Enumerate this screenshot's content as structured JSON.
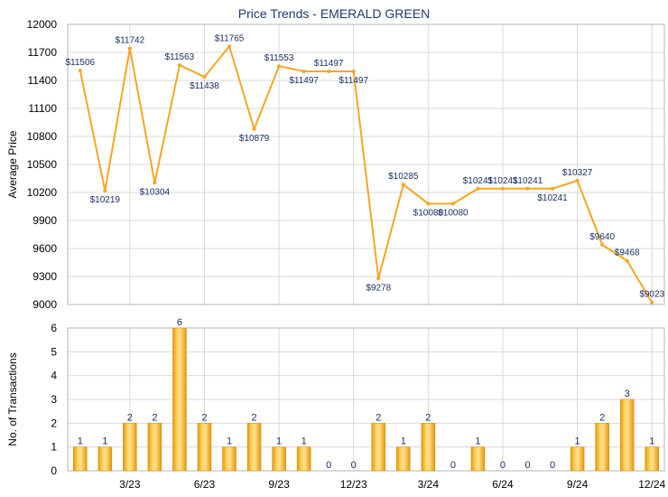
{
  "chart_data": [
    {
      "type": "line",
      "title": "Price Trends - EMERALD GREEN",
      "ylabel": "Average Price",
      "ylim": [
        9000,
        12000
      ],
      "yticks": [
        9000,
        9300,
        9600,
        9900,
        10200,
        10500,
        10800,
        11100,
        11400,
        11700,
        12000
      ],
      "grid": true,
      "color": "#f5a623",
      "points": [
        {
          "i": 0,
          "value": 11506,
          "label": "$11506"
        },
        {
          "i": 1,
          "value": 10219,
          "label": "$10219"
        },
        {
          "i": 2,
          "value": 11742,
          "label": "$11742"
        },
        {
          "i": 3,
          "value": 10304,
          "label": "$10304"
        },
        {
          "i": 4,
          "value": 11563,
          "label": "$11563"
        },
        {
          "i": 5,
          "value": 11438,
          "label": "$11438"
        },
        {
          "i": 6,
          "value": 11765,
          "label": "$11765"
        },
        {
          "i": 7,
          "value": 10879,
          "label": "$10879"
        },
        {
          "i": 8,
          "value": 11553,
          "label": "$11553"
        },
        {
          "i": 9,
          "value": 11497,
          "label": "$11497"
        },
        {
          "i": 10,
          "value": 11497,
          "label": "$11497"
        },
        {
          "i": 11,
          "value": 11497,
          "label": "$11497"
        },
        {
          "i": 12,
          "value": 9278,
          "label": "$9278"
        },
        {
          "i": 13,
          "value": 10285,
          "label": "$10285"
        },
        {
          "i": 14,
          "value": 10080,
          "label": "$10080"
        },
        {
          "i": 15,
          "value": 10080,
          "label": "$10080"
        },
        {
          "i": 16,
          "value": 10241,
          "label": "$10241"
        },
        {
          "i": 17,
          "value": 10241,
          "label": "$10241"
        },
        {
          "i": 18,
          "value": 10241,
          "label": "$10241"
        },
        {
          "i": 19,
          "value": 10241,
          "label": "$10241"
        },
        {
          "i": 20,
          "value": 10327,
          "label": "$10327"
        },
        {
          "i": 21,
          "value": 9640,
          "label": "$9640"
        },
        {
          "i": 22,
          "value": 9468,
          "label": "$9468"
        },
        {
          "i": 23,
          "value": 9023,
          "label": "$9023"
        }
      ]
    },
    {
      "type": "bar",
      "ylabel": "No. of Transactions",
      "ylim": [
        0,
        6
      ],
      "yticks": [
        0,
        1,
        2,
        3,
        4,
        5,
        6
      ],
      "grid": true,
      "color": "#f5a623",
      "values": [
        1,
        1,
        2,
        2,
        6,
        2,
        1,
        2,
        1,
        1,
        0,
        0,
        2,
        1,
        2,
        0,
        1,
        0,
        0,
        0,
        1,
        2,
        3,
        1
      ],
      "x_tick_labels": [
        {
          "at": 2.5,
          "label": "3/23"
        },
        {
          "at": 5.5,
          "label": "6/23"
        },
        {
          "at": 8.5,
          "label": "9/23"
        },
        {
          "at": 11.5,
          "label": "12/23"
        },
        {
          "at": 14.5,
          "label": "3/24"
        },
        {
          "at": 17.5,
          "label": "6/24"
        },
        {
          "at": 20.5,
          "label": "9/24"
        },
        {
          "at": 23.5,
          "label": "12/24"
        }
      ]
    }
  ]
}
